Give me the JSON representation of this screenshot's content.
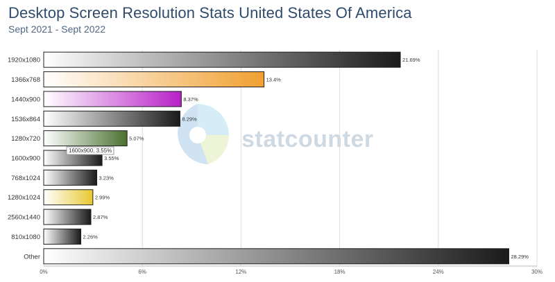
{
  "title": "Desktop Screen Resolution Stats United States Of America",
  "subtitle": "Sept 2021 - Sept 2022",
  "watermark": "statcounter",
  "tooltip": "1600x900, 3.55%",
  "chart_data": {
    "type": "bar",
    "orientation": "horizontal",
    "categories": [
      "1920x1080",
      "1366x768",
      "1440x900",
      "1536x864",
      "1280x720",
      "1600x900",
      "768x1024",
      "1280x1024",
      "2560x1440",
      "810x1080",
      "Other"
    ],
    "values": [
      21.69,
      13.4,
      8.37,
      8.29,
      5.07,
      3.55,
      3.23,
      2.99,
      2.87,
      2.26,
      28.29
    ],
    "value_labels": [
      "21.69%",
      "13.4%",
      "8.37%",
      "8.29%",
      "5.07%",
      "3.55%",
      "3.23%",
      "2.99%",
      "2.87%",
      "2.26%",
      "28.29%"
    ],
    "xticks": [
      "0%",
      "6%",
      "12%",
      "18%",
      "24%",
      "30%"
    ],
    "xlim": [
      0,
      30
    ],
    "grid": true,
    "colors": [
      "#1a1a1a",
      "#f0a030",
      "#b820c8",
      "#1a1a1a",
      "#4a7030",
      "#1a1a1a",
      "#1a1a1a",
      "#e8c830",
      "#1a1a1a",
      "#1a1a1a",
      "#1a1a1a"
    ]
  }
}
